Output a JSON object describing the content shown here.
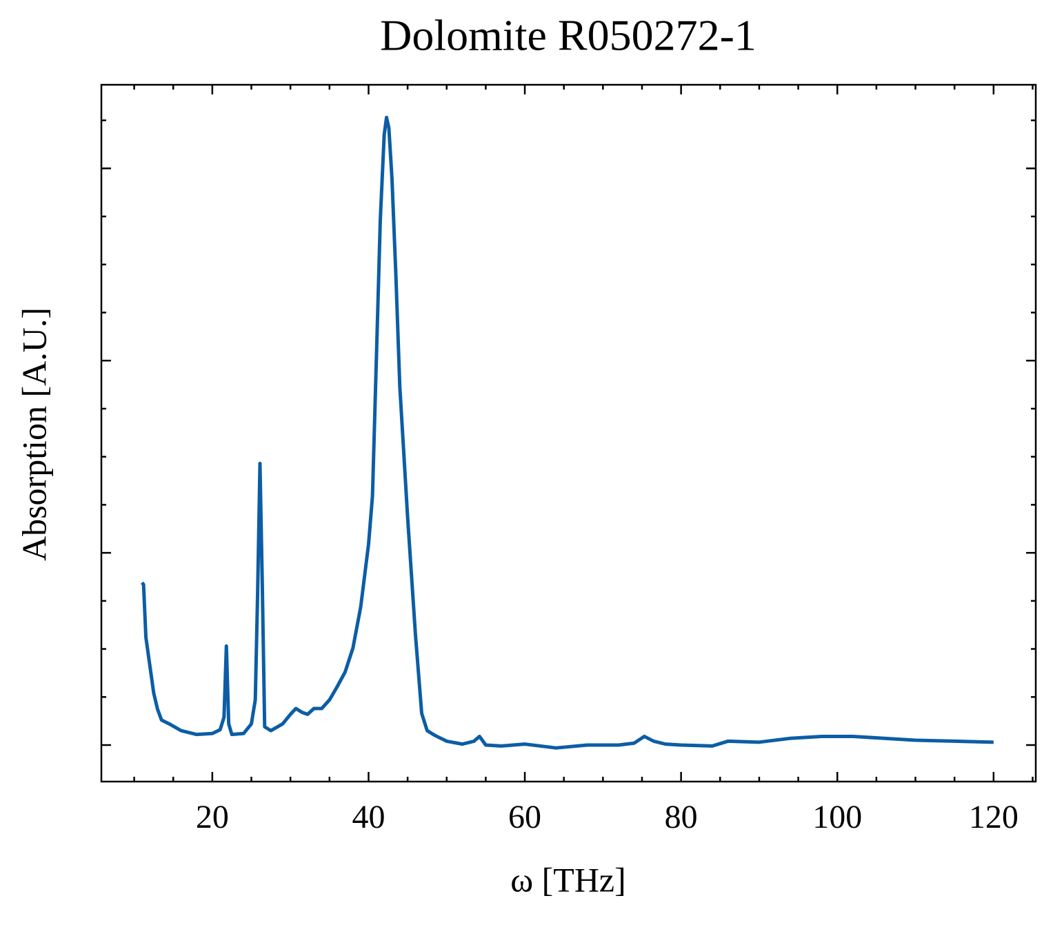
{
  "chart_data": {
    "type": "line",
    "title": "Dolomite R050272-1",
    "x_label": "ω [THz]",
    "y_label": "Absorption [A.U.]",
    "x": [
      11.0,
      11.2,
      11.5,
      12,
      12.5,
      13,
      13.5,
      14.5,
      16,
      18,
      20,
      21,
      21.5,
      21.8,
      22.1,
      22.5,
      24,
      25,
      25.5,
      25.8,
      26.1,
      26.4,
      26.7,
      27.5,
      29,
      30,
      30.7,
      31.5,
      32.2,
      33,
      34,
      35,
      36,
      37,
      38,
      39,
      40,
      40.5,
      41,
      41.5,
      42,
      42.3,
      42.6,
      43,
      43.5,
      44,
      45,
      46,
      46.8,
      47.5,
      48.5,
      50,
      52,
      53.5,
      54.2,
      55,
      57,
      60,
      64,
      68,
      72,
      74,
      75.3,
      76.5,
      78,
      80,
      84,
      86,
      90,
      94,
      98,
      102,
      106,
      110,
      115,
      120
    ],
    "series": [
      {
        "color": "#0c5da5",
        "values": [
          0.169,
          0.167,
          0.112,
          0.083,
          0.054,
          0.037,
          0.026,
          0.022,
          0.015,
          0.011,
          0.012,
          0.016,
          0.029,
          0.103,
          0.022,
          0.011,
          0.012,
          0.022,
          0.047,
          0.158,
          0.293,
          0.166,
          0.019,
          0.015,
          0.022,
          0.032,
          0.038,
          0.034,
          0.032,
          0.038,
          0.038,
          0.047,
          0.061,
          0.076,
          0.101,
          0.144,
          0.209,
          0.259,
          0.402,
          0.546,
          0.635,
          0.653,
          0.642,
          0.589,
          0.488,
          0.373,
          0.237,
          0.115,
          0.033,
          0.015,
          0.01,
          0.004,
          0.001,
          0.004,
          0.009,
          0,
          -0.001,
          0.001,
          -0.003,
          0,
          0,
          0.002,
          0.009,
          0.004,
          0.001,
          0,
          -0.001,
          0.004,
          0.003,
          0.007,
          0.009,
          0.009,
          0.007,
          0.005,
          0.004,
          0.003
        ]
      }
    ],
    "xlim": [
      5.8,
      125.4
    ],
    "xticks": [
      20,
      40,
      60,
      80,
      100,
      120
    ],
    "xminorticks": [
      10,
      15,
      25,
      30,
      35,
      45,
      50,
      55,
      65,
      70,
      75,
      85,
      90,
      95,
      105,
      110,
      115,
      125
    ],
    "ylim": [
      -0.038,
      0.687
    ],
    "yticks": [
      0,
      0.2,
      0.4,
      0.6
    ],
    "yminorticks": [
      0.05,
      0.1,
      0.15,
      0.25,
      0.3,
      0.35,
      0.45,
      0.5,
      0.55,
      0.65
    ]
  }
}
